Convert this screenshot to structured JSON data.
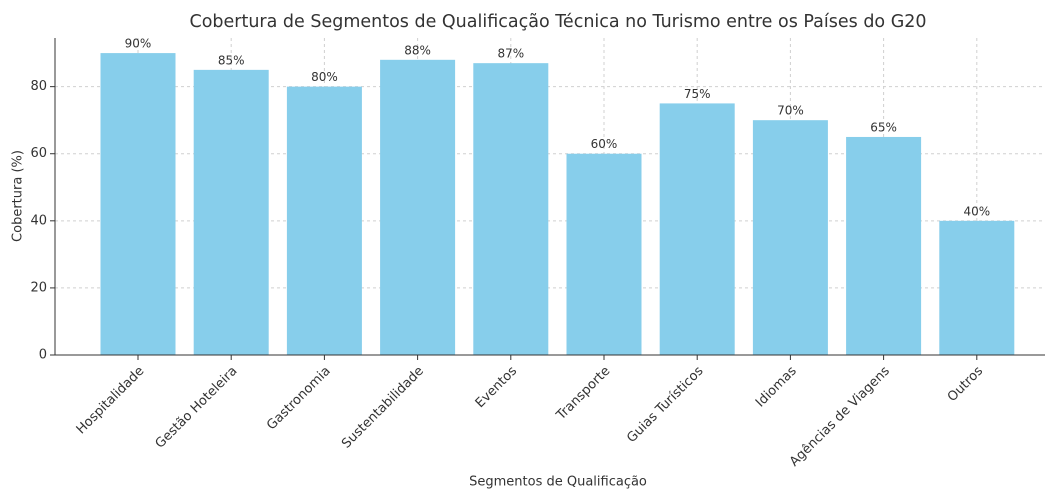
{
  "chart_data": {
    "type": "bar",
    "title": "Cobertura de Segmentos de Qualificação Técnica no Turismo entre os Países do G20",
    "x_label": "Segmentos de Qualificação",
    "y_label": "Cobertura (%)",
    "categories": [
      "Hospitalidade",
      "Gestão Hoteleira",
      "Gastronomia",
      "Sustentabilidade",
      "Eventos",
      "Transporte",
      "Guias Turísticos",
      "Idiomas",
      "Agências de Viagens",
      "Outros"
    ],
    "values": [
      90,
      85,
      80,
      88,
      87,
      60,
      75,
      70,
      65,
      40
    ],
    "value_labels": [
      "90%",
      "85%",
      "80%",
      "88%",
      "87%",
      "60%",
      "75%",
      "70%",
      "65%",
      "40%"
    ],
    "color": "#87ceeb",
    "ylim": [
      0,
      94.5
    ],
    "yticks": [
      0,
      20,
      40,
      60,
      80
    ],
    "grid": true
  }
}
